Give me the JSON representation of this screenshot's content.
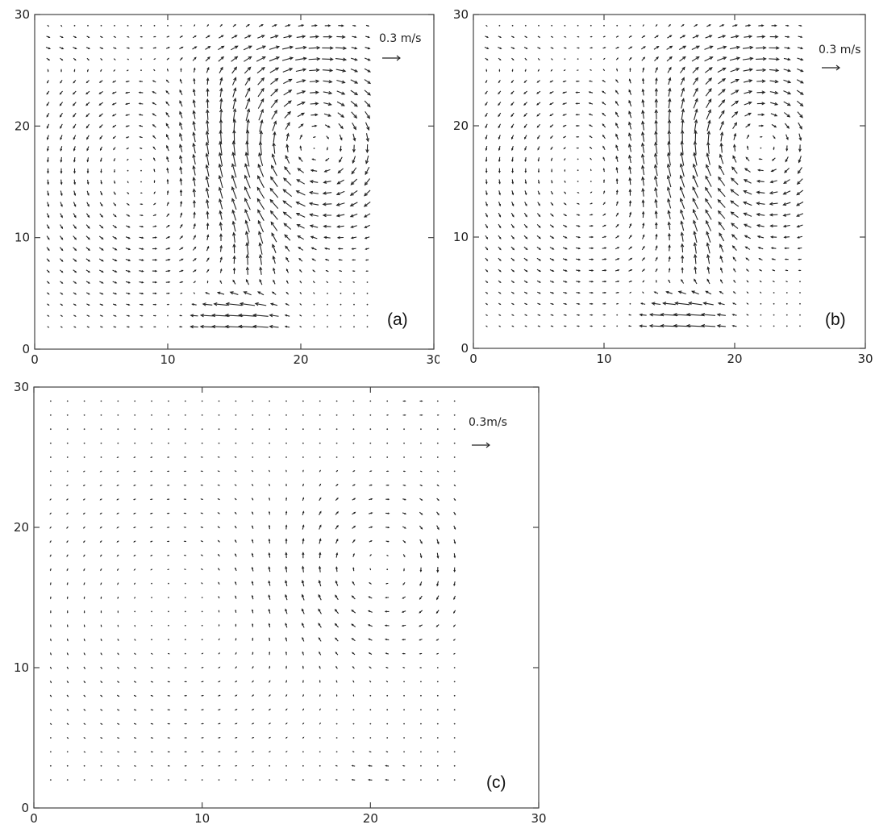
{
  "figure": {
    "panels": [
      {
        "id": "a",
        "label": "(a)",
        "scale_text": "0.3 m/s",
        "chart_data": {
          "type": "quiver",
          "title": "",
          "xlabel": "",
          "ylabel": "",
          "xlim": [
            0,
            30
          ],
          "ylim": [
            0,
            30
          ],
          "xticks": [
            "0",
            "10",
            "20",
            "30"
          ],
          "yticks": [
            "0",
            "10",
            "20",
            "30"
          ],
          "grid": false,
          "reference_vector": {
            "speed": 0.3,
            "unit": "m/s",
            "text": "0.3 m/s"
          },
          "domain": {
            "x": [
              1,
              25
            ],
            "y": [
              2,
              29
            ]
          },
          "flow": {
            "description_level": "grid-sampled",
            "strong_eddy_center": [
              20,
              18
            ],
            "jet_center": [
              15,
              3
            ],
            "max_speed": 0.4
          }
        }
      },
      {
        "id": "b",
        "label": "(b)",
        "scale_text": "0.3 m/s",
        "chart_data": {
          "type": "quiver",
          "title": "",
          "xlabel": "",
          "ylabel": "",
          "xlim": [
            0,
            30
          ],
          "ylim": [
            0,
            30
          ],
          "xticks": [
            "0",
            "10",
            "20",
            "30"
          ],
          "yticks": [
            "0",
            "10",
            "20",
            "30"
          ],
          "grid": false,
          "reference_vector": {
            "speed": 0.3,
            "unit": "m/s",
            "text": "0.3 m/s"
          },
          "domain": {
            "x": [
              1,
              25
            ],
            "y": [
              2,
              29
            ]
          },
          "flow": {
            "description_level": "grid-sampled",
            "strong_eddy_center": [
              21,
              18
            ],
            "jet_center": [
              16,
              3
            ],
            "max_speed": 0.35
          }
        }
      },
      {
        "id": "c",
        "label": "(c)",
        "scale_text": "0.3m/s",
        "chart_data": {
          "type": "quiver",
          "title": "",
          "xlabel": "",
          "ylabel": "",
          "xlim": [
            0,
            30
          ],
          "ylim": [
            0,
            30
          ],
          "xticks": [
            "0",
            "10",
            "20",
            "30"
          ],
          "yticks": [
            "0",
            "10",
            "20",
            "30"
          ],
          "grid": false,
          "reference_vector": {
            "speed": 0.3,
            "unit": "m/s",
            "text": "0.3m/s"
          },
          "domain": {
            "x": [
              1,
              25
            ],
            "y": [
              2,
              29
            ]
          },
          "flow": {
            "description_level": "grid-sampled",
            "strong_eddy_center": [
              20,
              17
            ],
            "jet_center": [
              20,
              3
            ],
            "max_speed": 0.12
          }
        }
      }
    ]
  }
}
